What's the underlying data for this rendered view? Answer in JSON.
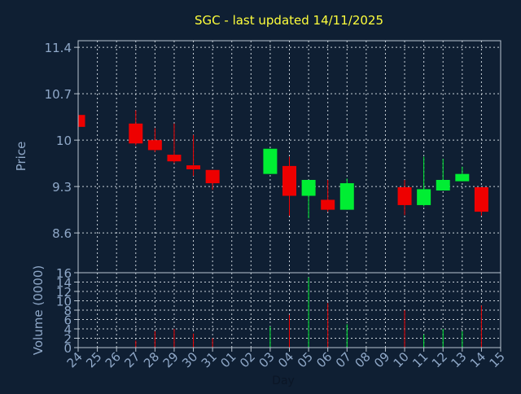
{
  "colors": {
    "background": "#0f1f33",
    "frame": "#b8c4d0",
    "grid": "#c8d0d8",
    "title": "#ffff3c",
    "axis_text": "#8fa8c8",
    "up": "#00ee33",
    "down": "#ee0000"
  },
  "chart_data": {
    "type": "candlestick",
    "title": "SGC - last updated 14/11/2025",
    "xlabel": "Day",
    "x_ticks": [
      "24",
      "25",
      "26",
      "27",
      "28",
      "29",
      "30",
      "31",
      "01",
      "02",
      "03",
      "04",
      "05",
      "06",
      "07",
      "08",
      "09",
      "10",
      "11",
      "12",
      "13",
      "14",
      "15"
    ],
    "price": {
      "ylabel": "Price",
      "y_ticks": [
        "11.4",
        "10.7",
        "10",
        "9.3",
        "8.6"
      ],
      "ylim": [
        8.0,
        11.5
      ],
      "grid": true
    },
    "volume": {
      "ylabel": "Volume (0000)",
      "y_ticks": [
        "16",
        "14",
        "12",
        "10",
        "8",
        "6",
        "4",
        "2",
        "0"
      ],
      "ylim": [
        0,
        16
      ],
      "grid": true
    },
    "candles": [
      {
        "day": "24",
        "open": 10.38,
        "high": 10.38,
        "low": 10.2,
        "close": 10.2,
        "volume": 0
      },
      {
        "day": "27",
        "open": 10.25,
        "high": 10.45,
        "low": 9.92,
        "close": 9.95,
        "volume": 1.5
      },
      {
        "day": "28",
        "open": 10.0,
        "high": 10.18,
        "low": 9.82,
        "close": 9.85,
        "volume": 3.5
      },
      {
        "day": "29",
        "open": 9.78,
        "high": 10.25,
        "low": 9.65,
        "close": 9.68,
        "volume": 4.0
      },
      {
        "day": "30",
        "open": 9.62,
        "high": 10.08,
        "low": 9.46,
        "close": 9.56,
        "volume": 3.0
      },
      {
        "day": "31",
        "open": 9.55,
        "high": 9.55,
        "low": 9.25,
        "close": 9.35,
        "volume": 2.0
      },
      {
        "day": "03",
        "open": 9.49,
        "high": 9.87,
        "low": 9.49,
        "close": 9.87,
        "volume": 4.5
      },
      {
        "day": "04",
        "open": 9.61,
        "high": 9.75,
        "low": 8.86,
        "close": 9.16,
        "volume": 7.0
      },
      {
        "day": "05",
        "open": 9.16,
        "high": 9.4,
        "low": 8.82,
        "close": 9.4,
        "volume": 15.0
      },
      {
        "day": "06",
        "open": 9.1,
        "high": 9.4,
        "low": 8.92,
        "close": 8.95,
        "volume": 9.5
      },
      {
        "day": "07",
        "open": 8.95,
        "high": 9.42,
        "low": 8.95,
        "close": 9.35,
        "volume": 5.0
      },
      {
        "day": "10",
        "open": 9.29,
        "high": 9.4,
        "low": 8.87,
        "close": 9.02,
        "volume": 8.0
      },
      {
        "day": "11",
        "open": 9.02,
        "high": 9.75,
        "low": 9.0,
        "close": 9.26,
        "volume": 2.8
      },
      {
        "day": "12",
        "open": 9.24,
        "high": 9.72,
        "low": 9.24,
        "close": 9.4,
        "volume": 4.0
      },
      {
        "day": "13",
        "open": 9.38,
        "high": 9.6,
        "low": 9.38,
        "close": 9.49,
        "volume": 3.5
      },
      {
        "day": "14",
        "open": 9.29,
        "high": 9.29,
        "low": 8.86,
        "close": 8.92,
        "volume": 9.0
      }
    ]
  }
}
